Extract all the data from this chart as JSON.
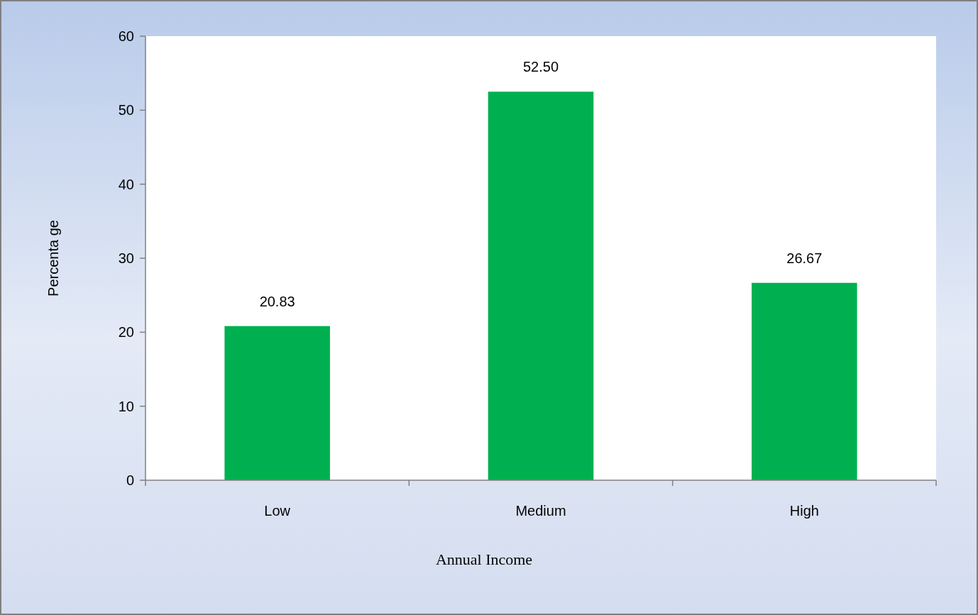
{
  "chart_data": {
    "type": "bar",
    "xlabel": "Annual Income",
    "ylabel": "Percenta ge",
    "categories": [
      "Low",
      "Medium",
      "High"
    ],
    "values": [
      20.83,
      52.5,
      26.67
    ],
    "value_labels": [
      "20.83",
      "52.50",
      "26.67"
    ],
    "color": "#00b050",
    "ylim": [
      0,
      60
    ],
    "yticks": [
      0,
      10,
      20,
      30,
      40,
      50,
      60
    ],
    "grid": false
  }
}
